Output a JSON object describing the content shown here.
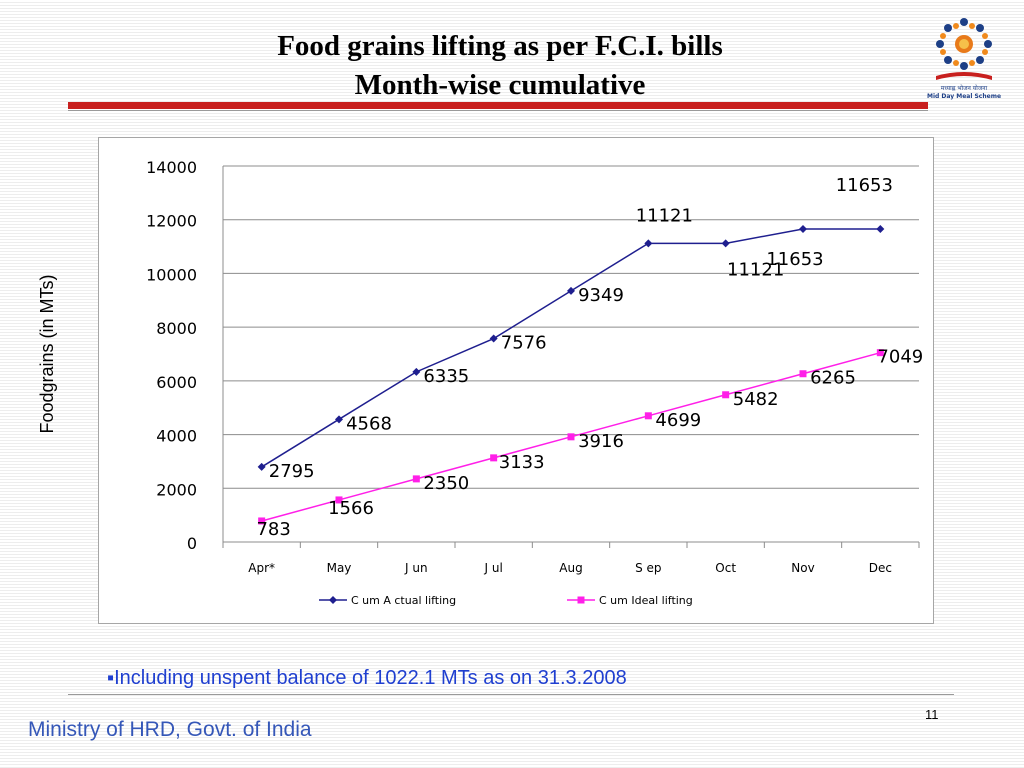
{
  "slide": {
    "title_line1": "Food grains lifting as per F.C.I. bills",
    "title_line2": "Month-wise cumulative",
    "footnote": "Including unspent balance of 1022.1 MTs as on 31.3.2008",
    "footnote_bullet": "▪",
    "page_number": "11",
    "footer": "Ministry of HRD, Govt. of India",
    "logo": {
      "icon": "mid-day-meal-logo",
      "line1": "मध्याह्न भोजन योजना",
      "line2": "Mid Day Meal Scheme"
    }
  },
  "chart_data": {
    "type": "line",
    "categories": [
      "Apr*",
      "May",
      "J un",
      "J ul",
      "Aug",
      "S ep",
      "Oct",
      "Nov",
      "Dec"
    ],
    "ylabel": "Foodgrains (in MTs)",
    "ylim": [
      0,
      14000
    ],
    "yticks": [
      0,
      2000,
      4000,
      6000,
      8000,
      10000,
      12000,
      14000
    ],
    "grid": true,
    "legend_position": "bottom",
    "series": [
      {
        "name": "C um A ctual lifting",
        "color": "#1f1f8f",
        "marker": "diamond",
        "values": [
          2795,
          4568,
          6335,
          7576,
          9349,
          11121,
          11121,
          11653,
          11653
        ],
        "labels": [
          "2795",
          "4568",
          "6335",
          "7576",
          "9349",
          "11121",
          "11121",
          "11653",
          "11653"
        ]
      },
      {
        "name": "C um Ideal  lifting",
        "color": "#ff1fe8",
        "marker": "square",
        "values": [
          783,
          1566,
          2350,
          3133,
          3916,
          4699,
          5482,
          6265,
          7049
        ],
        "labels": [
          "783",
          "1566",
          "2350",
          "3133",
          "3916",
          "4699",
          "5482",
          "6265",
          "7049"
        ]
      }
    ]
  }
}
